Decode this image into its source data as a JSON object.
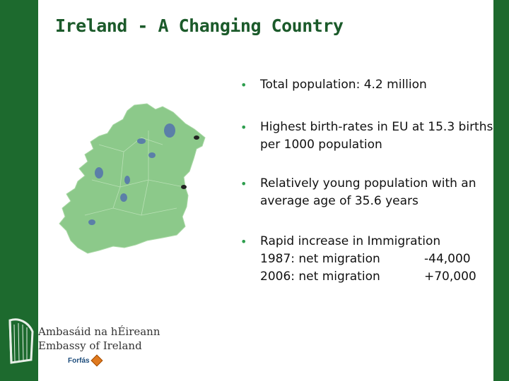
{
  "slide": {
    "title": "Ireland - A Changing Country"
  },
  "bullets": [
    {
      "text": "Total population: 4.2 million"
    },
    {
      "text": "Highest birth-rates in EU at 15.3 births per 1000 population"
    },
    {
      "text": "Relatively young population with an average age of 35.6 years"
    },
    {
      "text": "Rapid increase in Immigration"
    }
  ],
  "migration": [
    {
      "label": "1987: net migration",
      "value": "-44,000"
    },
    {
      "label": "2006: net migration",
      "value": "+70,000"
    }
  ],
  "footer": {
    "line1": "Ambasáid na hÉireann",
    "line2": "Embassy of Ireland",
    "forfas": "Forfás"
  },
  "colors": {
    "frame": "#1d6a2e",
    "title": "#1b5a2a",
    "bullet": "#2e9e4e",
    "map_land": "#8cc98a",
    "map_water": "#5b7fa8"
  },
  "icons": {
    "bullet": "bullet-dot-icon",
    "harp": "harp-icon",
    "map": "ireland-map"
  }
}
